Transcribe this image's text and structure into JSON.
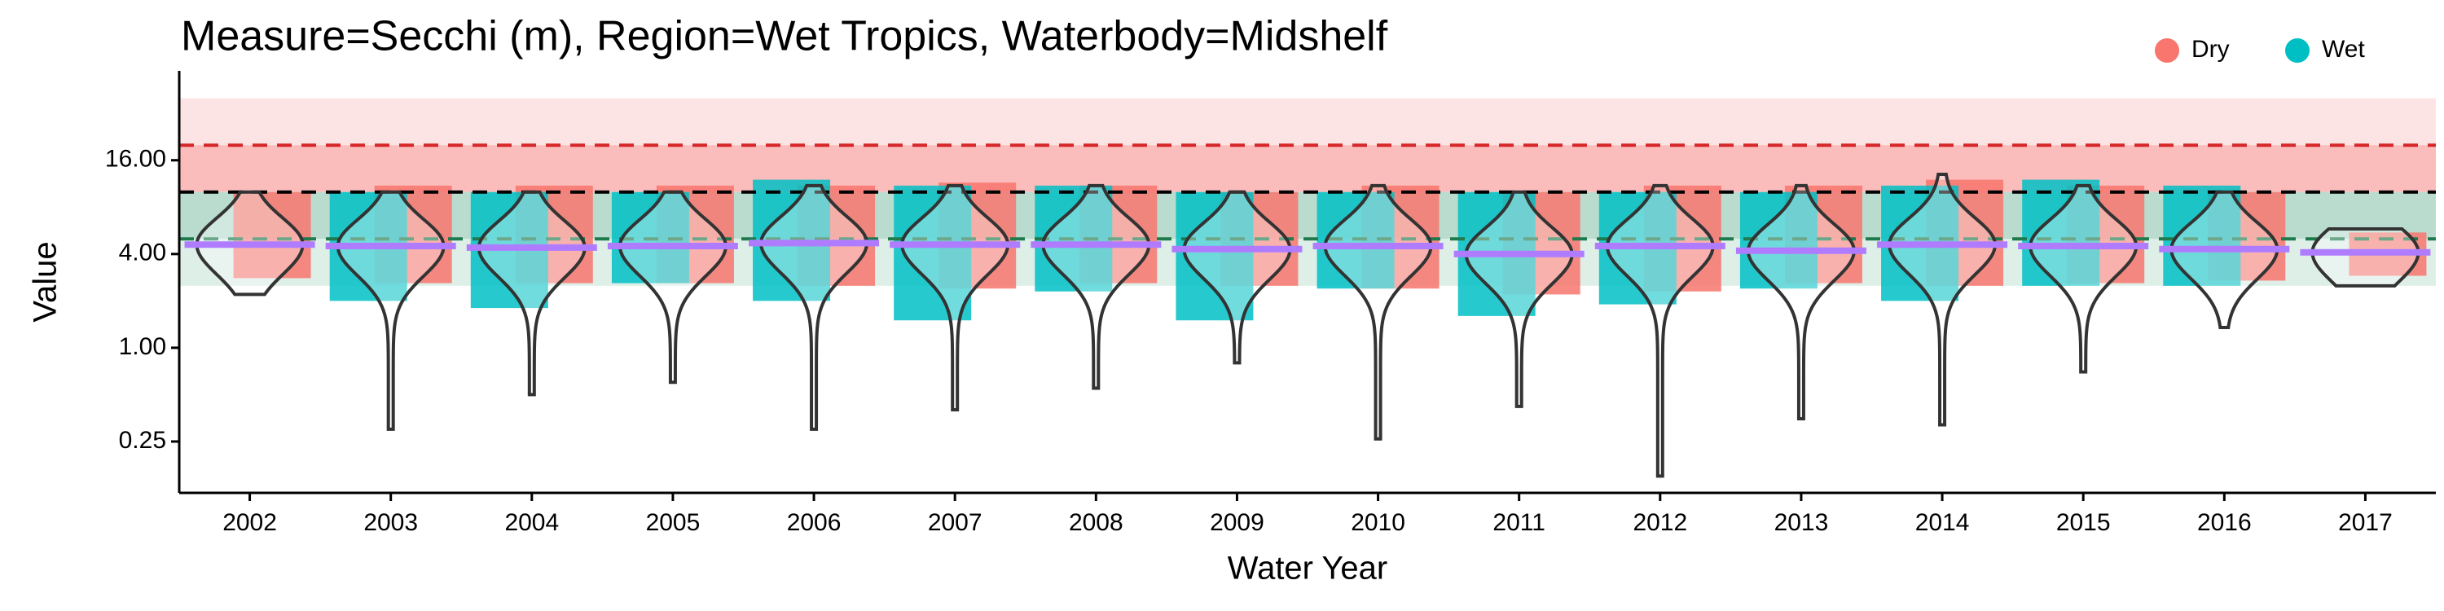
{
  "chart_data": {
    "type": "violin",
    "title": "Measure=Secchi (m), Region=Wet Tropics, Waterbody=Midshelf",
    "x_label": "Water Year",
    "y_label": "Value",
    "categories": [
      "2002",
      "2003",
      "2004",
      "2005",
      "2006",
      "2007",
      "2008",
      "2009",
      "2010",
      "2011",
      "2012",
      "2013",
      "2014",
      "2015",
      "2016",
      "2017"
    ],
    "min": [
      2.2,
      0.3,
      0.5,
      0.6,
      0.3,
      0.4,
      0.55,
      0.8,
      0.26,
      0.42,
      0.15,
      0.35,
      0.32,
      0.7,
      1.35,
      2.5
    ],
    "median": [
      4.6,
      4.5,
      4.4,
      4.5,
      4.7,
      4.6,
      4.6,
      4.3,
      4.5,
      4.0,
      4.5,
      4.2,
      4.6,
      4.5,
      4.3,
      4.1
    ],
    "max": [
      10,
      10,
      10,
      10,
      11,
      11,
      11,
      10,
      11,
      10,
      11,
      11,
      13,
      11,
      10,
      5.8
    ],
    "violin_color": "#333333",
    "median_color": "#b07cff",
    "series": [
      {
        "name": "Dry",
        "color": "#F8766D",
        "low": [
          2.8,
          2.6,
          2.6,
          2.6,
          2.5,
          2.4,
          2.6,
          2.5,
          2.4,
          2.2,
          2.3,
          2.6,
          2.5,
          2.6,
          2.7,
          2.9
        ],
        "high": [
          10,
          11,
          11,
          11,
          11,
          11.5,
          11,
          10,
          11,
          10,
          11,
          11,
          12,
          11,
          10,
          5.5
        ]
      },
      {
        "name": "Wet",
        "color": "#00BFC4",
        "low": [
          null,
          2.0,
          1.8,
          2.6,
          2.0,
          1.5,
          2.3,
          1.5,
          2.4,
          1.6,
          1.9,
          2.4,
          2.0,
          2.5,
          2.5,
          null
        ],
        "high": [
          null,
          10,
          10,
          10,
          12,
          11,
          11,
          10,
          10,
          10,
          10,
          10,
          11,
          12,
          11,
          null
        ]
      }
    ],
    "ylim": [
      0.117,
      60
    ],
    "log_base": 2,
    "yticks": [
      {
        "value": 0.25,
        "label": "0.25"
      },
      {
        "value": 1,
        "label": "1.00"
      },
      {
        "value": 4,
        "label": "4.00"
      },
      {
        "value": 16,
        "label": "16.00"
      }
    ],
    "bands": [
      {
        "low": 20,
        "high": 40,
        "color": "#fde4e4"
      },
      {
        "low": 10,
        "high": 20,
        "color": "#fbbcbc"
      },
      {
        "low": 5,
        "high": 10,
        "color": "#b9dccf"
      },
      {
        "low": 2.5,
        "high": 5,
        "color": "#deefe8"
      }
    ],
    "hlines": [
      {
        "value": 20,
        "color": "#d62728"
      },
      {
        "value": 10,
        "color": "#000000"
      },
      {
        "value": 5,
        "color": "#1f7a4d"
      }
    ],
    "legend": "top-right"
  }
}
